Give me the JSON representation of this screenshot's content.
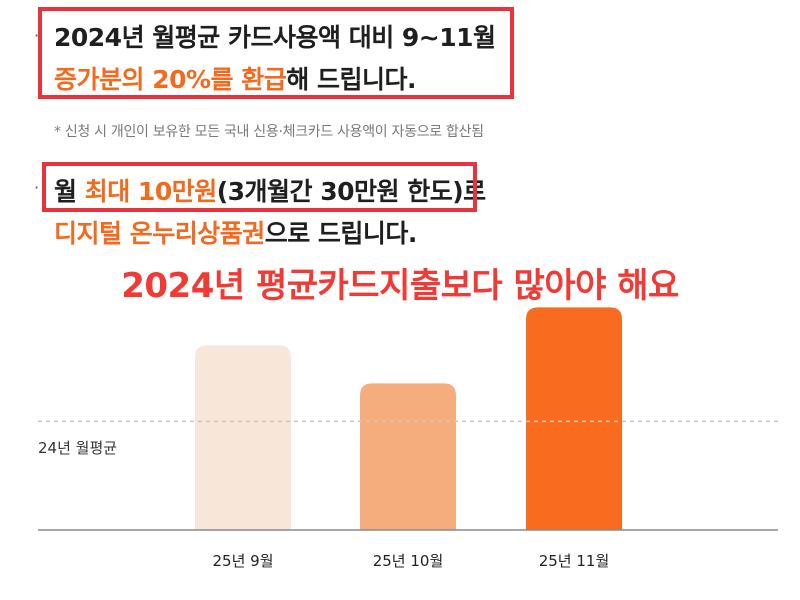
{
  "section1": {
    "line1": "2024년 월평균 카드사용액 대비 9~11월",
    "line2_highlight": "증가분의 20%를 환급",
    "line2_rest": "해 드립니다."
  },
  "note": "* 신청 시 개인이 보유한 모든 국내 신용·체크카드 사용액이 자동으로 합산됨",
  "section2": {
    "line1_prefix": "월 ",
    "line1_highlight": "최대 10만원",
    "line1_rest": "(3개월간 30만원 한도)",
    "line1_suffix": "로",
    "line2_highlight": "디지털 온누리상품권",
    "line2_rest": "으로 드립니다."
  },
  "headline": "2024년 평균카드지출보다 많아야 해요",
  "chart_data": {
    "type": "bar",
    "categories": [
      "25년 9월",
      "25년 10월",
      "25년 11월"
    ],
    "values": [
      1.7,
      1.35,
      2.05
    ],
    "reference": {
      "label": "24년 월평균",
      "value": 1.0
    },
    "ylim": [
      0,
      2.1
    ],
    "colors": [
      "#f8e6d8",
      "#f5ad7d",
      "#f96c1f"
    ],
    "reference_color": "#d4c3b6",
    "axis_color": "#8a8a8a"
  }
}
